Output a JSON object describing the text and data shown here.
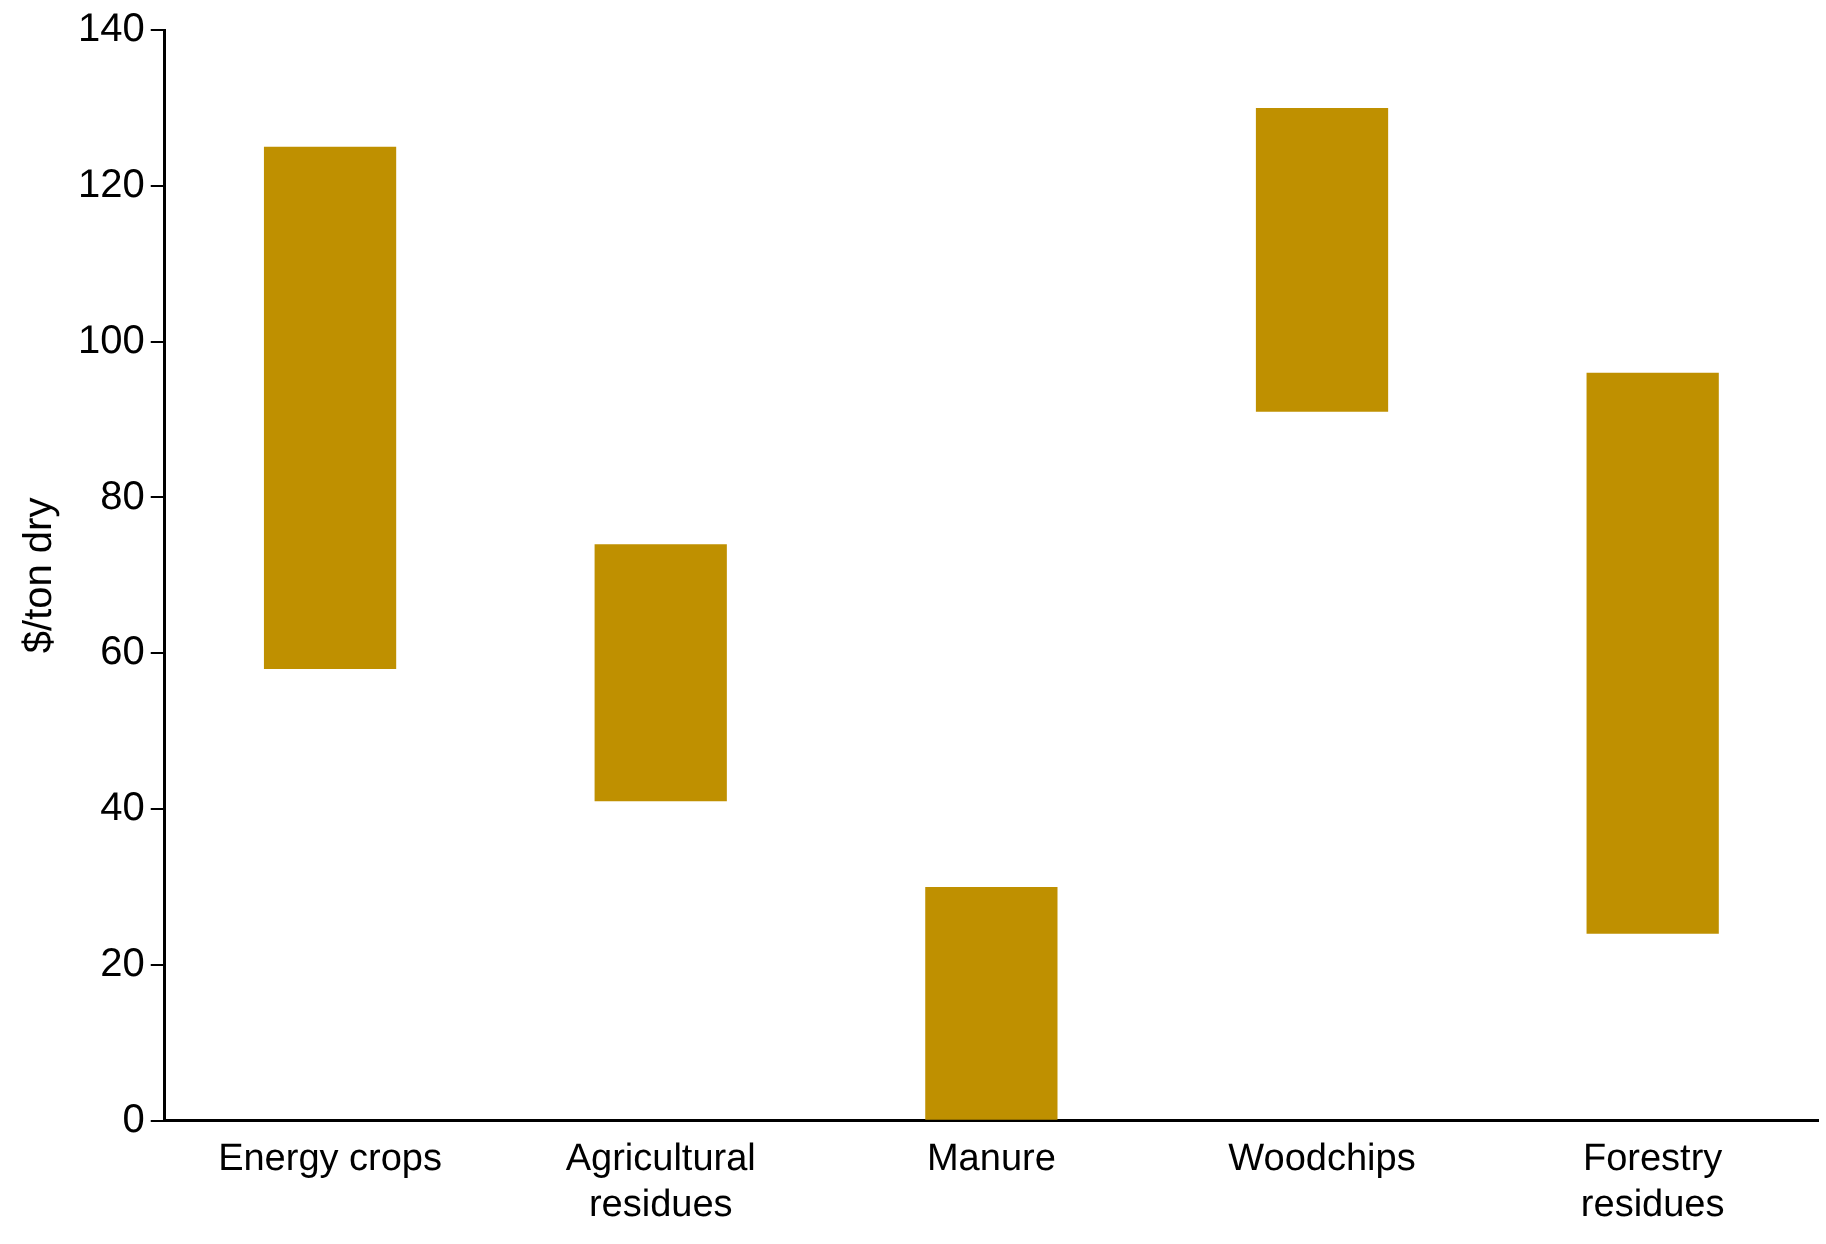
{
  "chart_data": {
    "type": "bar",
    "ylabel": "$/ton dry",
    "categories": [
      "Energy crops",
      "Agricultural residues",
      "Manure",
      "Woodchips",
      "Forestry residues"
    ],
    "values": [
      67,
      33,
      30,
      39,
      72
    ],
    "base": [
      58,
      41,
      0,
      91,
      24
    ],
    "color": "#bf9000",
    "ylim": [
      0,
      140
    ],
    "yticks": [
      0,
      20,
      40,
      60,
      80,
      100,
      120,
      140
    ],
    "grid": false,
    "legend": false
  }
}
